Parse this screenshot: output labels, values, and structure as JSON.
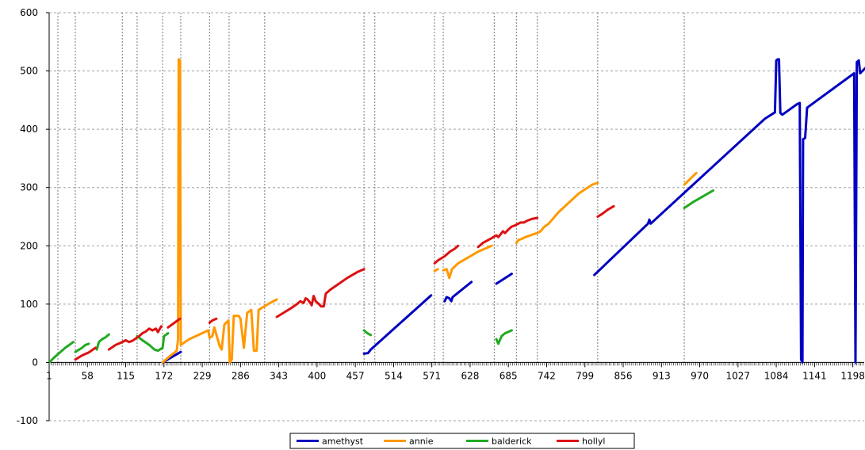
{
  "chart_data": {
    "type": "line",
    "title": "",
    "xlabel": "",
    "ylabel": "",
    "ylim": [
      -100,
      600
    ],
    "y_ticks": [
      -100,
      0,
      100,
      200,
      300,
      400,
      500,
      600
    ],
    "xlim": [
      1,
      1215
    ],
    "x_ticks": [
      1,
      58,
      115,
      172,
      229,
      286,
      343,
      400,
      457,
      514,
      571,
      628,
      685,
      742,
      799,
      856,
      913,
      970,
      1027,
      1084,
      1141,
      1198
    ],
    "y_grid": true,
    "x_grid": false,
    "vertical_markers": [
      14,
      40,
      110,
      132,
      170,
      197,
      240,
      269,
      322,
      470,
      486,
      575,
      588,
      664,
      697,
      728,
      818,
      947
    ],
    "legend_position": "bottom",
    "series": [
      {
        "name": "amethyst",
        "color": "#0000c0",
        "segments": [
          [
            [
              170,
              0
            ],
            [
              197,
              18
            ]
          ],
          [
            [
              470,
              15
            ],
            [
              476,
              16
            ],
            [
              480,
              22
            ],
            [
              570,
              115
            ]
          ],
          [
            [
              590,
              105
            ],
            [
              593,
              112
            ],
            [
              597,
              110
            ],
            [
              600,
              105
            ],
            [
              602,
              112
            ],
            [
              630,
              138
            ]
          ],
          [
            [
              667,
              135
            ],
            [
              690,
              152
            ]
          ],
          [
            [
              813,
              150
            ],
            [
              893,
              238
            ],
            [
              895,
              245
            ],
            [
              897,
              238
            ],
            [
              1067,
              418
            ],
            [
              1082,
              429
            ],
            [
              1084,
              518
            ],
            [
              1086,
              520
            ],
            [
              1088,
              520
            ],
            [
              1090,
              428
            ],
            [
              1093,
              425
            ],
            [
              1115,
              443
            ],
            [
              1119,
              445
            ],
            [
              1121,
              5
            ],
            [
              1123,
              0
            ],
            [
              1124,
              383
            ],
            [
              1127,
              385
            ],
            [
              1130,
              437
            ],
            [
              1200,
              496
            ],
            [
              1202,
              0
            ],
            [
              1204,
              515
            ],
            [
              1207,
              518
            ],
            [
              1209,
              496
            ],
            [
              1225,
              515
            ]
          ]
        ]
      },
      {
        "name": "annie",
        "color": "#ff9900",
        "segments": [
          [
            [
              170,
              0
            ],
            [
              180,
              10
            ],
            [
              191,
              20
            ],
            [
              193,
              40
            ],
            [
              194,
              520
            ],
            [
              196,
              518
            ],
            [
              197,
              30
            ],
            [
              210,
              40
            ],
            [
              238,
              55
            ],
            [
              240,
              42
            ],
            [
              244,
              45
            ],
            [
              247,
              60
            ],
            [
              255,
              28
            ],
            [
              258,
              22
            ],
            [
              262,
              65
            ],
            [
              268,
              72
            ],
            [
              270,
              0
            ],
            [
              273,
              5
            ],
            [
              276,
              80
            ],
            [
              283,
              80
            ],
            [
              286,
              75
            ],
            [
              291,
              25
            ],
            [
              296,
              85
            ],
            [
              302,
              90
            ],
            [
              306,
              20
            ],
            [
              310,
              20
            ],
            [
              313,
              90
            ],
            [
              320,
              95
            ],
            [
              330,
              102
            ],
            [
              340,
              108
            ]
          ],
          [
            [
              575,
              157
            ],
            [
              580,
              160
            ]
          ],
          [
            [
              588,
              158
            ],
            [
              593,
              160
            ],
            [
              597,
              145
            ],
            [
              601,
              160
            ],
            [
              610,
              170
            ],
            [
              640,
              190
            ],
            [
              660,
              200
            ]
          ],
          [
            [
              697,
              205
            ],
            [
              700,
              210
            ],
            [
              705,
              212
            ],
            [
              710,
              215
            ],
            [
              728,
              222
            ],
            [
              733,
              225
            ],
            [
              738,
              232
            ],
            [
              745,
              238
            ],
            [
              760,
              258
            ],
            [
              790,
              290
            ],
            [
              810,
              305
            ],
            [
              818,
              308
            ]
          ],
          [
            [
              947,
              305
            ],
            [
              965,
              325
            ]
          ]
        ]
      },
      {
        "name": "balderick",
        "color": "#22aa22",
        "segments": [
          [
            [
              1,
              0
            ],
            [
              10,
              10
            ],
            [
              25,
              25
            ],
            [
              37,
              35
            ]
          ],
          [
            [
              40,
              18
            ],
            [
              50,
              25
            ],
            [
              55,
              30
            ],
            [
              60,
              32
            ]
          ],
          [
            [
              72,
              22
            ],
            [
              75,
              35
            ],
            [
              80,
              40
            ],
            [
              85,
              43
            ],
            [
              90,
              48
            ]
          ],
          [
            [
              132,
              45
            ],
            [
              140,
              38
            ],
            [
              150,
              30
            ],
            [
              158,
              22
            ],
            [
              163,
              20
            ],
            [
              170,
              25
            ],
            [
              172,
              45
            ],
            [
              178,
              50
            ]
          ],
          [
            [
              470,
              55
            ],
            [
              475,
              50
            ],
            [
              480,
              47
            ]
          ],
          [
            [
              667,
              40
            ],
            [
              670,
              32
            ],
            [
              675,
              45
            ],
            [
              680,
              50
            ],
            [
              690,
              55
            ]
          ],
          [
            [
              947,
              265
            ],
            [
              960,
              275
            ],
            [
              975,
              285
            ],
            [
              990,
              295
            ]
          ]
        ]
      },
      {
        "name": "hollyl",
        "color": "#dd1111",
        "segments": [
          [
            [
              40,
              5
            ],
            [
              50,
              12
            ],
            [
              60,
              17
            ],
            [
              70,
              25
            ]
          ],
          [
            [
              90,
              22
            ],
            [
              100,
              30
            ],
            [
              110,
              35
            ],
            [
              115,
              38
            ],
            [
              120,
              35
            ],
            [
              125,
              37
            ],
            [
              135,
              45
            ],
            [
              140,
              50
            ],
            [
              145,
              53
            ],
            [
              150,
              58
            ],
            [
              155,
              55
            ],
            [
              160,
              58
            ],
            [
              163,
              52
            ],
            [
              168,
              62
            ]
          ],
          [
            [
              178,
              60
            ],
            [
              184,
              65
            ],
            [
              190,
              70
            ],
            [
              196,
              75
            ]
          ],
          [
            [
              240,
              68
            ],
            [
              244,
              72
            ],
            [
              250,
              75
            ]
          ],
          [
            [
              340,
              78
            ],
            [
              350,
              85
            ],
            [
              360,
              92
            ],
            [
              370,
              100
            ],
            [
              375,
              105
            ],
            [
              380,
              102
            ],
            [
              383,
              110
            ],
            [
              386,
              108
            ],
            [
              390,
              102
            ],
            [
              392,
              98
            ],
            [
              395,
              114
            ],
            [
              398,
              105
            ],
            [
              403,
              100
            ],
            [
              406,
              96
            ],
            [
              410,
              96
            ],
            [
              413,
              118
            ],
            [
              420,
              125
            ],
            [
              430,
              133
            ],
            [
              445,
              145
            ],
            [
              460,
              155
            ],
            [
              470,
              160
            ]
          ],
          [
            [
              575,
              170
            ],
            [
              580,
              175
            ],
            [
              590,
              182
            ],
            [
              598,
              190
            ],
            [
              605,
              195
            ],
            [
              610,
              200
            ]
          ],
          [
            [
              640,
              198
            ],
            [
              647,
              205
            ],
            [
              655,
              210
            ],
            [
              660,
              213
            ],
            [
              667,
              218
            ],
            [
              670,
              215
            ],
            [
              677,
              225
            ],
            [
              680,
              222
            ],
            [
              685,
              228
            ],
            [
              690,
              233
            ],
            [
              695,
              235
            ],
            [
              703,
              240
            ],
            [
              708,
              240
            ],
            [
              713,
              243
            ],
            [
              720,
              246
            ],
            [
              728,
              248
            ]
          ],
          [
            [
              818,
              250
            ],
            [
              825,
              255
            ],
            [
              833,
              262
            ],
            [
              842,
              268
            ]
          ]
        ]
      }
    ]
  }
}
